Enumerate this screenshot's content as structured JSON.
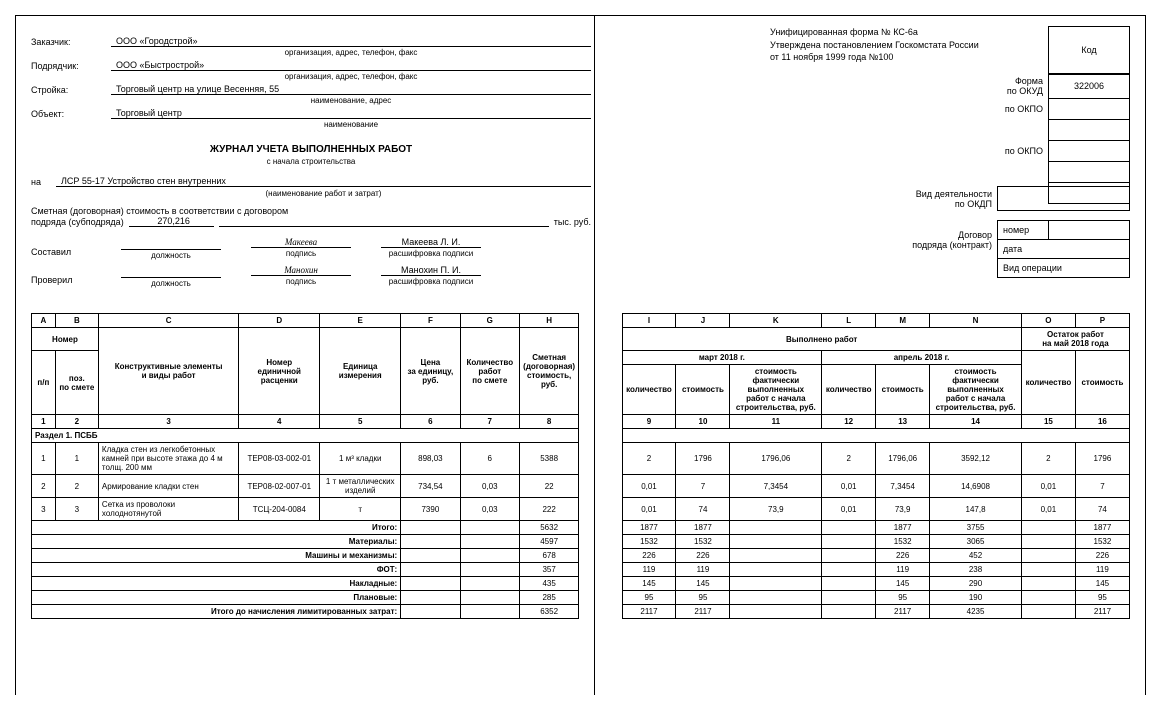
{
  "approval": {
    "line1": "Унифицированная форма № КС-6а",
    "line2": "Утверждена постановлением Госкомстата России",
    "line3": "от 11 ноября 1999 года №100"
  },
  "codes": {
    "header_kod": "Код",
    "form_label": "Форма",
    "okud_label": "по ОКУД",
    "okud_value": "322006",
    "okpo1_label": "по ОКПО",
    "okpo2_label": "по ОКПО"
  },
  "parties": {
    "customer_label": "Заказчик:",
    "customer_value": "ООО «Городстрой»",
    "customer_hint": "организация, адрес, телефон, факс",
    "contractor_label": "Подрядчик:",
    "contractor_value": "ООО «Быстрострой»",
    "contractor_hint": "организация, адрес, телефон, факс",
    "construction_label": "Стройка:",
    "construction_value": "Торговый центр на улице Весенняя, 55",
    "construction_hint": "наименование, адрес",
    "object_label": "Объект:",
    "object_value": "Торговый центр",
    "object_hint": "наименование"
  },
  "title": "ЖУРНАЛ УЧЕТА ВЫПОЛНЕННЫХ РАБОТ",
  "subtitle": "с начала строительства",
  "work": {
    "prefix": "на",
    "name": "ЛСР 55-17 Устройство стен внутренних",
    "hint": "(наименование работ и затрат)"
  },
  "activity_label": "Вид деятельности",
  "okdp_label": "по ОКДП",
  "contract": {
    "label1": "Договор",
    "label2": "подряда (контракт)",
    "number_label": "номер",
    "date_label": "дата",
    "op_label": "Вид операции"
  },
  "estimate": {
    "line1": "Сметная (договорная) стоимость в соответствии с договором",
    "line2_prefix": "подряда (субподряда)",
    "value": "270,216",
    "unit": "тыс. руб."
  },
  "signatures": {
    "compiled_label": "Составил",
    "checked_label": "Проверил",
    "position_hint": "должность",
    "sign_hint": "подпись",
    "name_hint": "расшифровка подписи",
    "sign1": "Макеева",
    "name1": "Макеева Л. И.",
    "sign2": "Манохин",
    "name2": "Манохин П. И."
  },
  "table": {
    "letters": [
      "A",
      "B",
      "C",
      "D",
      "E",
      "F",
      "G",
      "H",
      "I",
      "J",
      "K",
      "L",
      "M",
      "N",
      "O",
      "P"
    ],
    "numbers": [
      "1",
      "2",
      "3",
      "4",
      "5",
      "6",
      "7",
      "8",
      "9",
      "10",
      "11",
      "12",
      "13",
      "14",
      "15",
      "16"
    ],
    "h_number": "Номер",
    "h_pp": "п/п",
    "h_poz": "поз.\nпо смете",
    "h_construct": "Конструктивные элементы\nи виды работ",
    "h_rate_num": "Номер\nединичной\nрасценки",
    "h_unit": "Единица\nизмерения",
    "h_price": "Цена\nза единицу,\nруб.",
    "h_qty": "Количество\nработ\nпо смете",
    "h_estimate": "Сметная\n(договорная)\nстоимость,\nруб.",
    "h_done": "Выполнено работ",
    "h_month1": "март 2018 г.",
    "h_month2": "апрель 2018 г.",
    "h_remain": "Остаток работ\nна май 2018 года",
    "h_qty2": "количество",
    "h_cost": "стоимость",
    "h_cumul": "стоимость\nфактически\nвыполненных\nработ с начала\nстроительства, руб.",
    "section": "Раздел 1. ПСББ",
    "rows": [
      {
        "n": "1",
        "poz": "1",
        "name": "Кладка стен из легкобетонных камней при высоте этажа до 4 м толщ. 200 мм",
        "rate": "ТЕР08-03-002-01",
        "unit": "1 м³ кладки",
        "price": "898,03",
        "qty": "6",
        "est": "5388",
        "q1": "2",
        "c1": "1796",
        "cum1": "1796,06",
        "q2": "2",
        "c2": "1796,06",
        "cum2": "3592,12",
        "qr": "2",
        "cr": "1796"
      },
      {
        "n": "2",
        "poz": "2",
        "name": "Армирование кладки стен",
        "rate": "ТЕР08-02-007-01",
        "unit": "1 т металлических изделий",
        "price": "734,54",
        "qty": "0,03",
        "est": "22",
        "q1": "0,01",
        "c1": "7",
        "cum1": "7,3454",
        "q2": "0,01",
        "c2": "7,3454",
        "cum2": "14,6908",
        "qr": "0,01",
        "cr": "7"
      },
      {
        "n": "3",
        "poz": "3",
        "name": "Сетка из проволоки холоднотянутой",
        "rate": "ТСЦ-204-0084",
        "unit": "т",
        "price": "7390",
        "qty": "0,03",
        "est": "222",
        "q1": "0,01",
        "c1": "74",
        "cum1": "73,9",
        "q2": "0,01",
        "c2": "73,9",
        "cum2": "147,8",
        "qr": "0,01",
        "cr": "74"
      }
    ],
    "totals": [
      {
        "label": "Итого:",
        "est": "5632",
        "q1": "1877",
        "c1": "1877",
        "c2": "1877",
        "cum2": "3755",
        "cr": "1877"
      },
      {
        "label": "Материалы:",
        "est": "4597",
        "q1": "1532",
        "c1": "1532",
        "c2": "1532",
        "cum2": "3065",
        "cr": "1532"
      },
      {
        "label": "Машины и механизмы:",
        "est": "678",
        "q1": "226",
        "c1": "226",
        "c2": "226",
        "cum2": "452",
        "cr": "226"
      },
      {
        "label": "ФОТ:",
        "est": "357",
        "q1": "119",
        "c1": "119",
        "c2": "119",
        "cum2": "238",
        "cr": "119"
      },
      {
        "label": "Накладные:",
        "est": "435",
        "q1": "145",
        "c1": "145",
        "c2": "145",
        "cum2": "290",
        "cr": "145"
      },
      {
        "label": "Плановые:",
        "est": "285",
        "q1": "95",
        "c1": "95",
        "c2": "95",
        "cum2": "190",
        "cr": "95"
      },
      {
        "label": "Итого до начисления лимитированных затрат:",
        "est": "6352",
        "q1": "2117",
        "c1": "2117",
        "c2": "2117",
        "cum2": "4235",
        "cr": "2117"
      }
    ]
  }
}
